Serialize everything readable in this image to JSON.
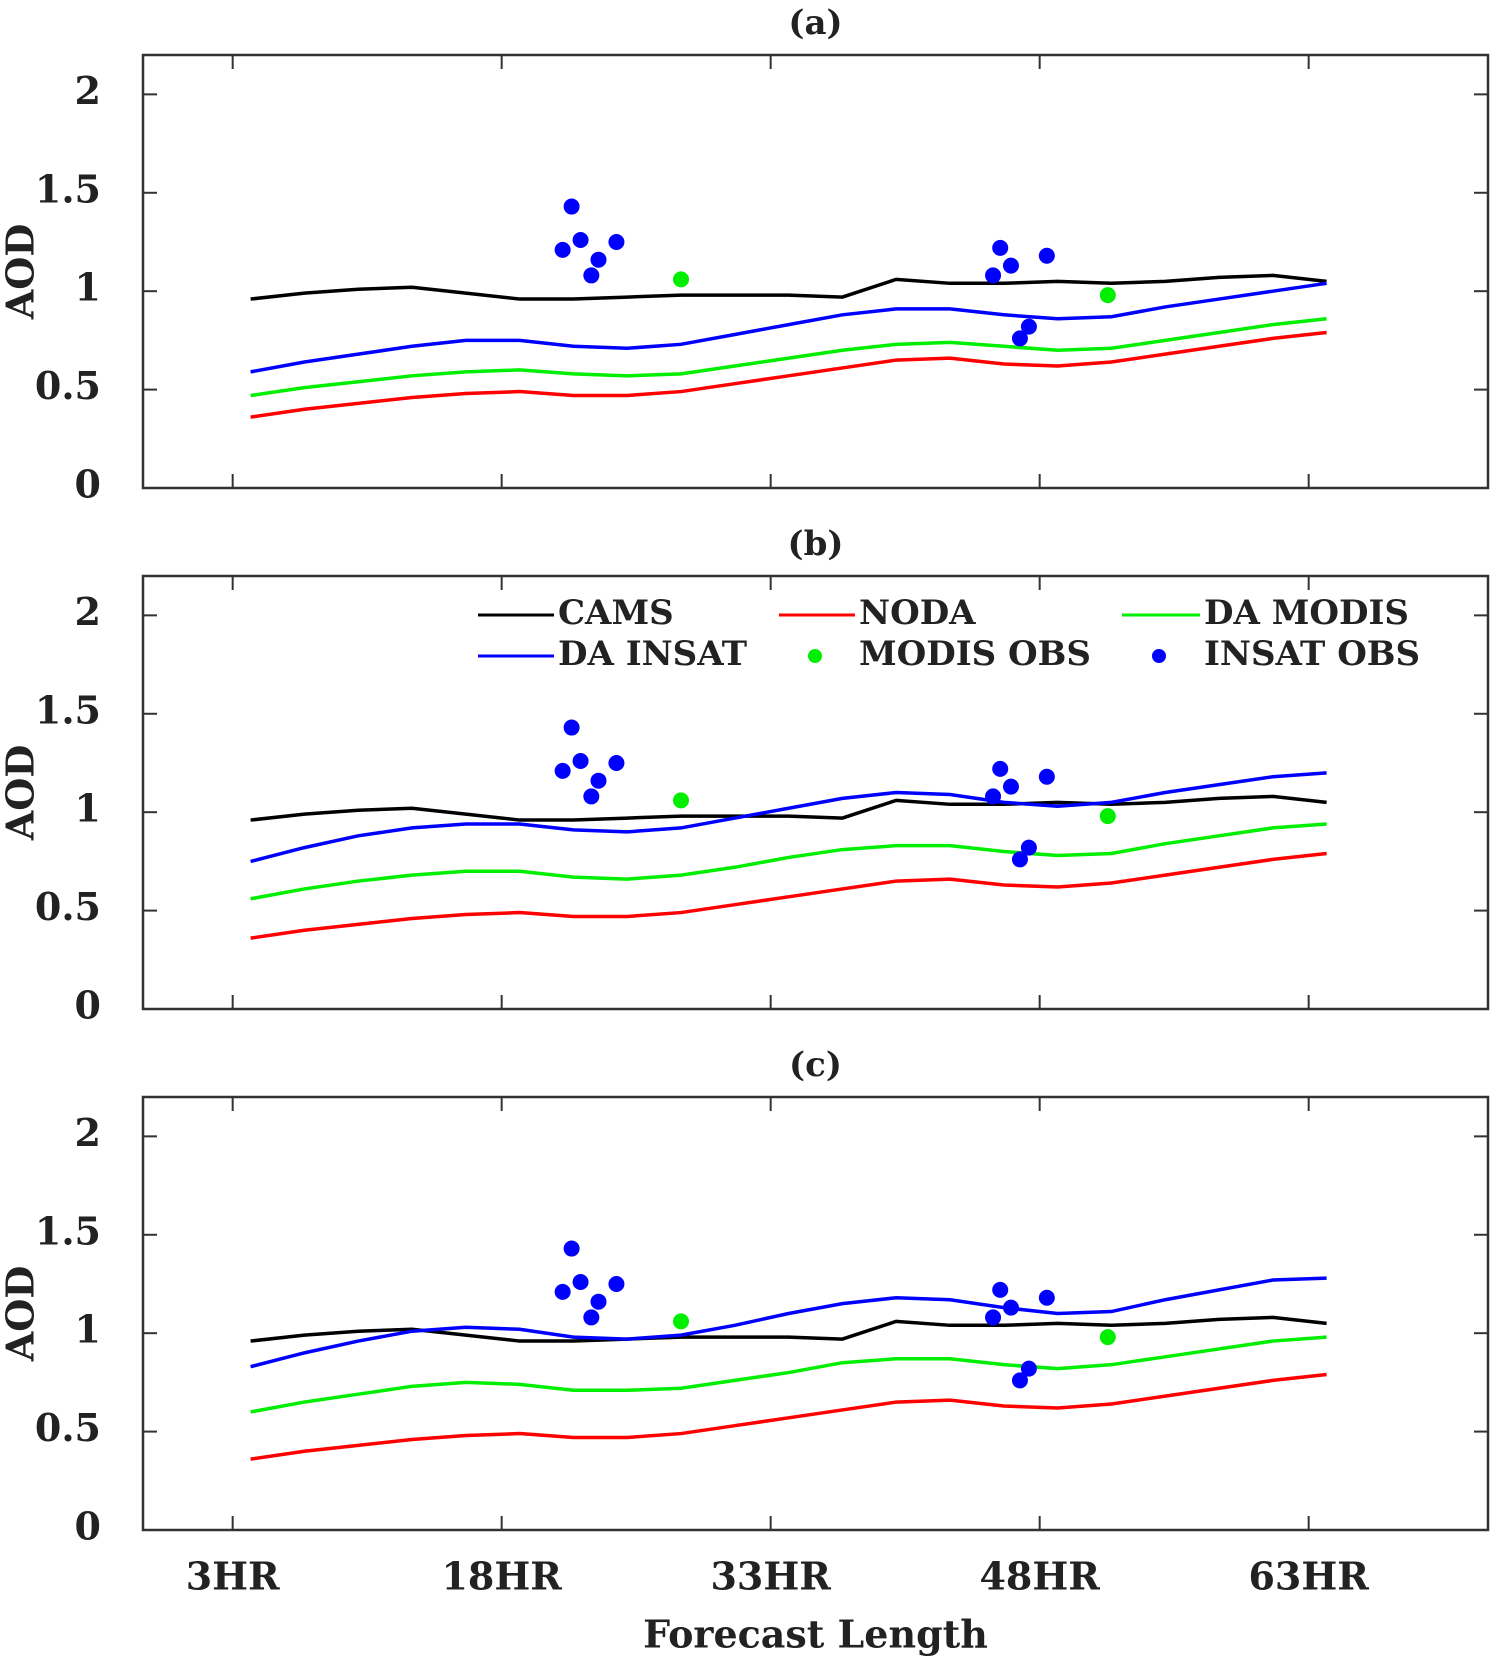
{
  "chart_data": [
    {
      "type": "line",
      "title": "(a)",
      "ylabel": "AOD",
      "x": [
        4,
        7,
        10,
        13,
        16,
        19,
        22,
        25,
        28,
        31,
        34,
        37,
        40,
        43,
        46,
        49,
        52,
        55,
        58,
        61,
        64
      ],
      "xlim": [
        -2,
        73
      ],
      "xticks": [
        3,
        18,
        33,
        48,
        63
      ],
      "ylim": [
        0,
        2.2
      ],
      "yticks": [
        0,
        0.5,
        1,
        1.5,
        2
      ],
      "series": [
        {
          "name": "CAMS",
          "color": "#000000",
          "values": [
            0.96,
            0.99,
            1.01,
            1.02,
            0.99,
            0.96,
            0.96,
            0.97,
            0.98,
            0.98,
            0.98,
            0.97,
            1.06,
            1.04,
            1.04,
            1.05,
            1.04,
            1.05,
            1.07,
            1.08,
            1.05
          ]
        },
        {
          "name": "NODA",
          "color": "#ff0000",
          "values": [
            0.36,
            0.4,
            0.43,
            0.46,
            0.48,
            0.49,
            0.47,
            0.47,
            0.49,
            0.53,
            0.57,
            0.61,
            0.65,
            0.66,
            0.63,
            0.62,
            0.64,
            0.68,
            0.72,
            0.76,
            0.79
          ]
        },
        {
          "name": "DA MODIS",
          "color": "#00ee00",
          "values": [
            0.47,
            0.51,
            0.54,
            0.57,
            0.59,
            0.6,
            0.58,
            0.57,
            0.58,
            0.62,
            0.66,
            0.7,
            0.73,
            0.74,
            0.72,
            0.7,
            0.71,
            0.75,
            0.79,
            0.83,
            0.86
          ]
        },
        {
          "name": "DA INSAT",
          "color": "#0000ff",
          "values": [
            0.59,
            0.64,
            0.68,
            0.72,
            0.75,
            0.75,
            0.72,
            0.71,
            0.73,
            0.78,
            0.83,
            0.88,
            0.91,
            0.91,
            0.88,
            0.86,
            0.87,
            0.92,
            0.96,
            1.0,
            1.04
          ]
        },
        {
          "name": "MODIS OBS",
          "color": "#00ee00",
          "type": "scatter",
          "x": [
            28.0,
            51.8
          ],
          "values": [
            1.06,
            0.98
          ]
        },
        {
          "name": "INSAT OBS",
          "color": "#0000ff",
          "type": "scatter",
          "x": [
            21.4,
            21.9,
            22.4,
            23.0,
            23.4,
            24.4,
            45.4,
            45.8,
            46.4,
            46.9,
            47.4,
            48.4
          ],
          "values": [
            1.21,
            1.43,
            1.26,
            1.08,
            1.16,
            1.25,
            1.08,
            1.22,
            1.13,
            0.76,
            0.82,
            1.18
          ]
        }
      ]
    },
    {
      "type": "line",
      "title": "(b)",
      "ylabel": "AOD",
      "legend": "top",
      "x": [
        4,
        7,
        10,
        13,
        16,
        19,
        22,
        25,
        28,
        31,
        34,
        37,
        40,
        43,
        46,
        49,
        52,
        55,
        58,
        61,
        64
      ],
      "xlim": [
        -2,
        73
      ],
      "xticks": [
        3,
        18,
        33,
        48,
        63
      ],
      "ylim": [
        0,
        2.2
      ],
      "yticks": [
        0,
        0.5,
        1,
        1.5,
        2
      ],
      "series": [
        {
          "name": "CAMS",
          "color": "#000000",
          "values": [
            0.96,
            0.99,
            1.01,
            1.02,
            0.99,
            0.96,
            0.96,
            0.97,
            0.98,
            0.98,
            0.98,
            0.97,
            1.06,
            1.04,
            1.04,
            1.05,
            1.04,
            1.05,
            1.07,
            1.08,
            1.05
          ]
        },
        {
          "name": "NODA",
          "color": "#ff0000",
          "values": [
            0.36,
            0.4,
            0.43,
            0.46,
            0.48,
            0.49,
            0.47,
            0.47,
            0.49,
            0.53,
            0.57,
            0.61,
            0.65,
            0.66,
            0.63,
            0.62,
            0.64,
            0.68,
            0.72,
            0.76,
            0.79
          ]
        },
        {
          "name": "DA MODIS",
          "color": "#00ee00",
          "values": [
            0.56,
            0.61,
            0.65,
            0.68,
            0.7,
            0.7,
            0.67,
            0.66,
            0.68,
            0.72,
            0.77,
            0.81,
            0.83,
            0.83,
            0.8,
            0.78,
            0.79,
            0.84,
            0.88,
            0.92,
            0.94
          ]
        },
        {
          "name": "DA INSAT",
          "color": "#0000ff",
          "values": [
            0.75,
            0.82,
            0.88,
            0.92,
            0.94,
            0.94,
            0.91,
            0.9,
            0.92,
            0.97,
            1.02,
            1.07,
            1.1,
            1.09,
            1.05,
            1.03,
            1.05,
            1.1,
            1.14,
            1.18,
            1.2
          ]
        },
        {
          "name": "MODIS OBS",
          "color": "#00ee00",
          "type": "scatter",
          "x": [
            28.0,
            51.8
          ],
          "values": [
            1.06,
            0.98
          ]
        },
        {
          "name": "INSAT OBS",
          "color": "#0000ff",
          "type": "scatter",
          "x": [
            21.4,
            21.9,
            22.4,
            23.0,
            23.4,
            24.4,
            45.4,
            45.8,
            46.4,
            46.9,
            47.4,
            48.4
          ],
          "values": [
            1.21,
            1.43,
            1.26,
            1.08,
            1.16,
            1.25,
            1.08,
            1.22,
            1.13,
            0.76,
            0.82,
            1.18
          ]
        }
      ]
    },
    {
      "type": "line",
      "title": "(c)",
      "ylabel": "AOD",
      "xlabel": "Forecast Length",
      "x": [
        4,
        7,
        10,
        13,
        16,
        19,
        22,
        25,
        28,
        31,
        34,
        37,
        40,
        43,
        46,
        49,
        52,
        55,
        58,
        61,
        64
      ],
      "xlim": [
        -2,
        73
      ],
      "xticks": [
        {
          "value": 3,
          "label": "3HR"
        },
        {
          "value": 18,
          "label": "18HR"
        },
        {
          "value": 33,
          "label": "33HR"
        },
        {
          "value": 48,
          "label": "48HR"
        },
        {
          "value": 63,
          "label": "63HR"
        }
      ],
      "ylim": [
        0,
        2.2
      ],
      "yticks": [
        0,
        0.5,
        1,
        1.5,
        2
      ],
      "series": [
        {
          "name": "CAMS",
          "color": "#000000",
          "values": [
            0.96,
            0.99,
            1.01,
            1.02,
            0.99,
            0.96,
            0.96,
            0.97,
            0.98,
            0.98,
            0.98,
            0.97,
            1.06,
            1.04,
            1.04,
            1.05,
            1.04,
            1.05,
            1.07,
            1.08,
            1.05
          ]
        },
        {
          "name": "NODA",
          "color": "#ff0000",
          "values": [
            0.36,
            0.4,
            0.43,
            0.46,
            0.48,
            0.49,
            0.47,
            0.47,
            0.49,
            0.53,
            0.57,
            0.61,
            0.65,
            0.66,
            0.63,
            0.62,
            0.64,
            0.68,
            0.72,
            0.76,
            0.79
          ]
        },
        {
          "name": "DA MODIS",
          "color": "#00ee00",
          "values": [
            0.6,
            0.65,
            0.69,
            0.73,
            0.75,
            0.74,
            0.71,
            0.71,
            0.72,
            0.76,
            0.8,
            0.85,
            0.87,
            0.87,
            0.84,
            0.82,
            0.84,
            0.88,
            0.92,
            0.96,
            0.98
          ]
        },
        {
          "name": "DA INSAT",
          "color": "#0000ff",
          "values": [
            0.83,
            0.9,
            0.96,
            1.01,
            1.03,
            1.02,
            0.98,
            0.97,
            0.99,
            1.04,
            1.1,
            1.15,
            1.18,
            1.17,
            1.13,
            1.1,
            1.11,
            1.17,
            1.22,
            1.27,
            1.28
          ]
        },
        {
          "name": "MODIS OBS",
          "color": "#00ee00",
          "type": "scatter",
          "x": [
            28.0,
            51.8
          ],
          "values": [
            1.06,
            0.98
          ]
        },
        {
          "name": "INSAT OBS",
          "color": "#0000ff",
          "type": "scatter",
          "x": [
            21.4,
            21.9,
            22.4,
            23.0,
            23.4,
            24.4,
            45.4,
            45.8,
            46.4,
            46.9,
            47.4,
            48.4
          ],
          "values": [
            1.21,
            1.43,
            1.26,
            1.08,
            1.16,
            1.25,
            1.08,
            1.22,
            1.13,
            0.76,
            0.82,
            1.18
          ]
        }
      ]
    }
  ]
}
